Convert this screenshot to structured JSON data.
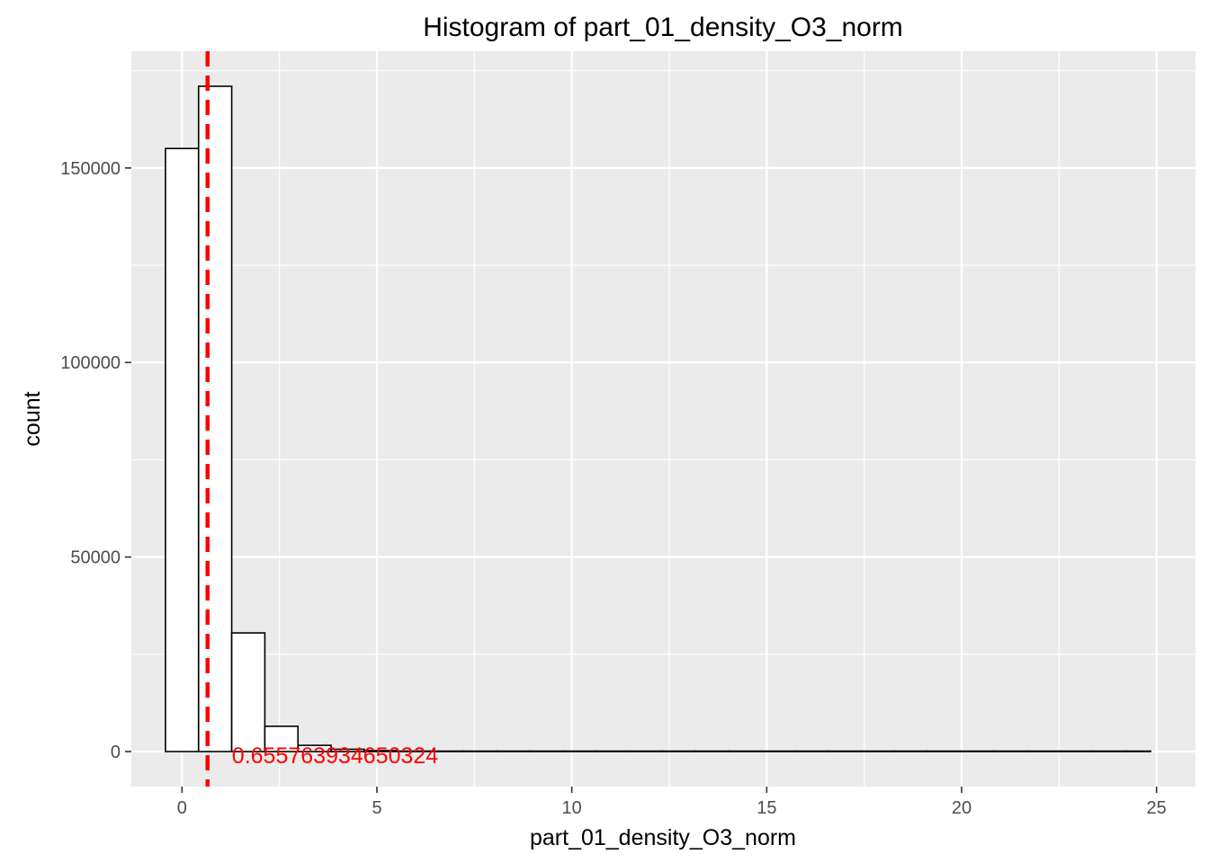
{
  "chart_data": {
    "type": "bar",
    "subtype": "histogram",
    "title": "Histogram of  part_01_density_O3_norm",
    "xlabel": "part_01_density_O3_norm",
    "ylabel": "count",
    "xlim": [
      -1.3,
      26.0
    ],
    "ylim": [
      -9000,
      180000
    ],
    "x_ticks": [
      0,
      5,
      10,
      15,
      20,
      25
    ],
    "x_tick_labels": [
      "0",
      "5",
      "10",
      "15",
      "20",
      "25"
    ],
    "y_ticks": [
      0,
      50000,
      100000,
      150000
    ],
    "y_tick_labels": [
      "0",
      "50000",
      "100000",
      "150000"
    ],
    "grid": true,
    "background": "#ebebeb",
    "bar_fill": "#ffffff",
    "bar_outline": "#000000",
    "bin_width": 0.85,
    "bins": [
      {
        "x0": -0.425,
        "x1": 0.425,
        "count": 155000
      },
      {
        "x0": 0.425,
        "x1": 1.275,
        "count": 171000
      },
      {
        "x0": 1.275,
        "x1": 2.125,
        "count": 30500
      },
      {
        "x0": 2.125,
        "x1": 2.975,
        "count": 6500
      },
      {
        "x0": 2.975,
        "x1": 3.825,
        "count": 1600
      },
      {
        "x0": 3.825,
        "x1": 4.675,
        "count": 600
      },
      {
        "x0": 4.675,
        "x1": 5.525,
        "count": 250
      },
      {
        "x0": 5.525,
        "x1": 6.375,
        "count": 120
      },
      {
        "x0": 6.375,
        "x1": 7.225,
        "count": 60
      },
      {
        "x0": 7.225,
        "x1": 8.075,
        "count": 30
      },
      {
        "x0": 8.075,
        "x1": 8.925,
        "count": 15
      },
      {
        "x0": 8.925,
        "x1": 9.775,
        "count": 8
      },
      {
        "x0": 9.775,
        "x1": 10.625,
        "count": 5
      },
      {
        "x0": 10.625,
        "x1": 11.475,
        "count": 3
      },
      {
        "x0": 11.475,
        "x1": 12.325,
        "count": 2
      },
      {
        "x0": 12.325,
        "x1": 13.175,
        "count": 1
      },
      {
        "x0": 13.175,
        "x1": 14.025,
        "count": 1
      },
      {
        "x0": 14.025,
        "x1": 14.875,
        "count": 1
      },
      {
        "x0": 14.875,
        "x1": 15.725,
        "count": 0
      },
      {
        "x0": 15.725,
        "x1": 16.575,
        "count": 0
      },
      {
        "x0": 16.575,
        "x1": 17.425,
        "count": 0
      },
      {
        "x0": 17.425,
        "x1": 18.275,
        "count": 0
      },
      {
        "x0": 18.275,
        "x1": 19.125,
        "count": 0
      },
      {
        "x0": 19.125,
        "x1": 19.975,
        "count": 0
      },
      {
        "x0": 19.975,
        "x1": 20.825,
        "count": 0
      },
      {
        "x0": 20.825,
        "x1": 21.675,
        "count": 0
      },
      {
        "x0": 21.675,
        "x1": 22.525,
        "count": 0
      },
      {
        "x0": 22.525,
        "x1": 23.375,
        "count": 0
      },
      {
        "x0": 23.375,
        "x1": 24.225,
        "count": 0
      },
      {
        "x0": 24.225,
        "x1": 24.85,
        "count": 1
      }
    ],
    "mean_line": {
      "x": 0.655763934650324,
      "color": "#ff0000",
      "style": "dashed"
    },
    "annotation": {
      "text": "0.655763934650324",
      "x": 1.28,
      "y": 0,
      "color": "#ff0000"
    }
  }
}
